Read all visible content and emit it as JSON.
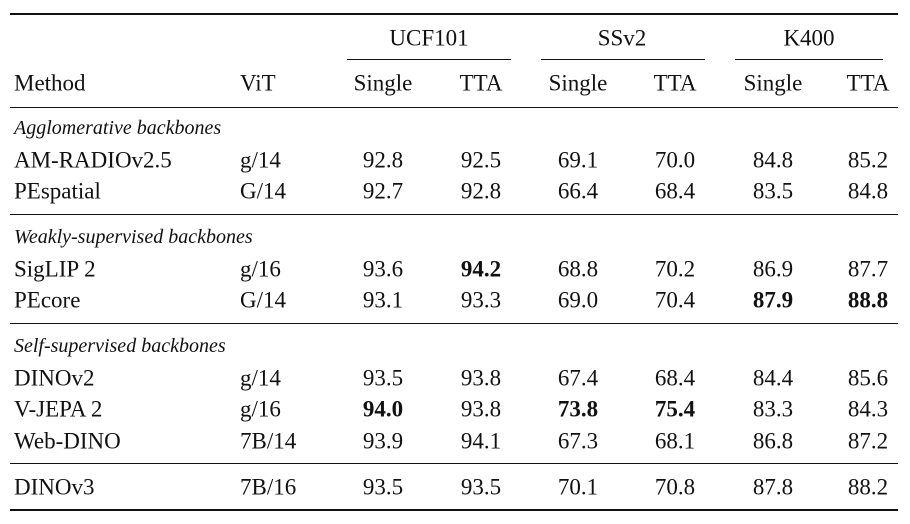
{
  "table": {
    "group_headers": [
      "UCF101",
      "SSv2",
      "K400"
    ],
    "columns": [
      "Method",
      "ViT",
      "Single",
      "TTA",
      "Single",
      "TTA",
      "Single",
      "TTA"
    ],
    "sections": [
      {
        "title": "Agglomerative backbones",
        "rows": [
          [
            "AM-RADIOv2.5",
            "g/14",
            "92.8",
            "92.5",
            "69.1",
            "70.0",
            "84.8",
            "85.2"
          ],
          [
            "PEspatial",
            "G/14",
            "92.7",
            "92.8",
            "66.4",
            "68.4",
            "83.5",
            "84.8"
          ]
        ],
        "bold": []
      },
      {
        "title": "Weakly-supervised backbones",
        "rows": [
          [
            "SigLIP 2",
            "g/16",
            "93.6",
            "94.2",
            "68.8",
            "70.2",
            "86.9",
            "87.7"
          ],
          [
            "PEcore",
            "G/14",
            "93.1",
            "93.3",
            "69.0",
            "70.4",
            "87.9",
            "88.8"
          ]
        ],
        "bold": [
          [
            0,
            3
          ],
          [
            1,
            6
          ],
          [
            1,
            7
          ]
        ]
      },
      {
        "title": "Self-supervised backbones",
        "rows": [
          [
            "DINOv2",
            "g/14",
            "93.5",
            "93.8",
            "67.4",
            "68.4",
            "84.4",
            "85.6"
          ],
          [
            "V-JEPA 2",
            "g/16",
            "94.0",
            "93.8",
            "73.8",
            "75.4",
            "83.3",
            "84.3"
          ],
          [
            "Web-DINO",
            "7B/14",
            "93.9",
            "94.1",
            "67.3",
            "68.1",
            "86.8",
            "87.2"
          ]
        ],
        "bold": [
          [
            1,
            2
          ],
          [
            1,
            4
          ],
          [
            1,
            5
          ]
        ]
      },
      {
        "rows": [
          [
            "DINOv3",
            "7B/16",
            "93.5",
            "93.5",
            "70.1",
            "70.8",
            "87.8",
            "88.2"
          ]
        ],
        "bold": []
      }
    ]
  }
}
